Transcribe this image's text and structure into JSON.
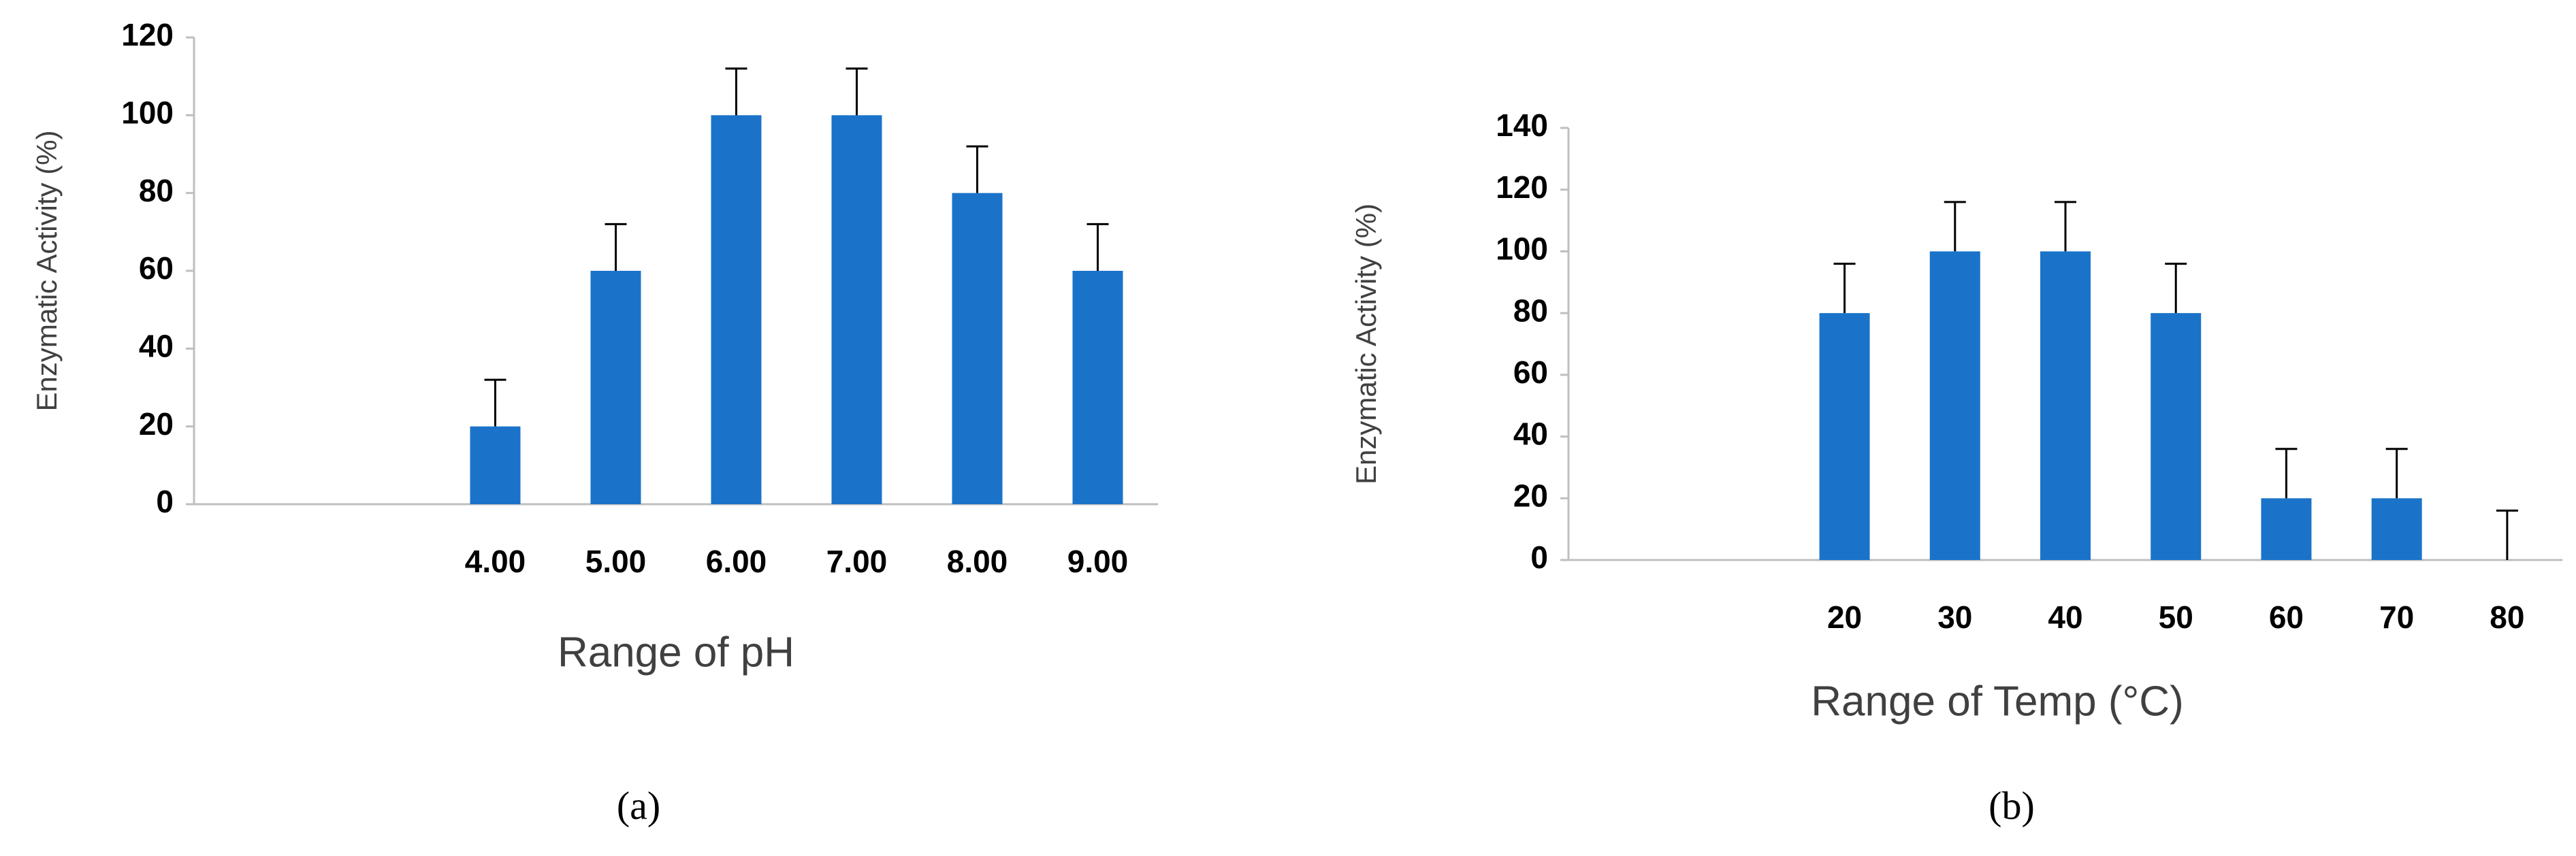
{
  "chart_data": [
    {
      "type": "bar",
      "caption": "(a)",
      "x_label": "Range of pH",
      "y_label": "Enzymatic Activity (%)",
      "categories": [
        null,
        null,
        "4.00",
        "5.00",
        "6.00",
        "7.00",
        "8.00",
        "9.00"
      ],
      "values": [
        null,
        null,
        20,
        60,
        100,
        100,
        80,
        60
      ],
      "errors": [
        null,
        null,
        12,
        12,
        12,
        12,
        12,
        12
      ],
      "color": "#1a73c9",
      "ylim": [
        0,
        120
      ],
      "yticks": [
        0,
        20,
        40,
        60,
        80,
        100,
        120
      ]
    },
    {
      "type": "bar",
      "caption": "(b)",
      "x_label": "Range of Temp (°C)",
      "y_label": "Enzymatic Activity (%)",
      "categories": [
        null,
        null,
        "20",
        "30",
        "40",
        "50",
        "60",
        "70",
        "80"
      ],
      "values": [
        null,
        null,
        80,
        100,
        100,
        80,
        20,
        20,
        0
      ],
      "errors": [
        null,
        null,
        16,
        16,
        16,
        16,
        16,
        16,
        16
      ],
      "color": "#1a73c9",
      "ylim": [
        0,
        140
      ],
      "yticks": [
        0,
        20,
        40,
        60,
        80,
        100,
        120,
        140
      ]
    }
  ]
}
